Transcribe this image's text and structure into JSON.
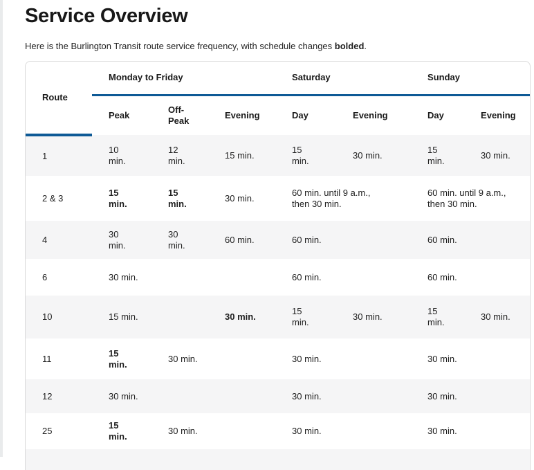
{
  "page": {
    "title": "Service Overview",
    "intro_prefix": "Here is the Burlington Transit route service frequency, with schedule changes ",
    "intro_bold": "bolded",
    "intro_suffix": "."
  },
  "colors": {
    "accent_blue": "#0e5a96",
    "stripe_gray": "#f5f5f6",
    "border_gray": "#dbdbdb",
    "text_dark": "#212121"
  },
  "table": {
    "corner_header": "Route",
    "groups": [
      {
        "label": "Monday to Friday",
        "span": 3
      },
      {
        "label": "Saturday",
        "span": 2
      },
      {
        "label": "Sunday",
        "span": 2
      }
    ],
    "subheaders": {
      "mf_peak": "Peak",
      "mf_offpeak": "Off-\nPeak",
      "mf_evening": "Evening",
      "sat_day": "Day",
      "sat_evening": "Evening",
      "sun_day": "Day",
      "sun_evening": "Evening"
    },
    "rows": [
      {
        "route": "1",
        "cells": [
          {
            "text": "10\nmin."
          },
          {
            "text": "12\nmin."
          },
          {
            "text": "15 min."
          },
          {
            "text": "15\nmin."
          },
          {
            "text": "30 min."
          },
          {
            "text": "15\nmin."
          },
          {
            "text": "30 min."
          }
        ]
      },
      {
        "route": "2 & 3",
        "cells": [
          {
            "text": "15\nmin.",
            "bold": true
          },
          {
            "text": "15\nmin.",
            "bold": true
          },
          {
            "text": "30 min."
          },
          {
            "text": "60 min. until 9 a.m.,\nthen 30 min.",
            "span": 2
          },
          {
            "text": "60 min. until 9 a.m.,\nthen 30 min.",
            "span": 2
          }
        ]
      },
      {
        "route": "4",
        "cells": [
          {
            "text": "30\nmin."
          },
          {
            "text": "30\nmin."
          },
          {
            "text": "60 min."
          },
          {
            "text": "60 min.",
            "span": 2
          },
          {
            "text": "60 min.",
            "span": 2
          }
        ]
      },
      {
        "route": "6",
        "cells": [
          {
            "text": "30 min.",
            "span": 3
          },
          {
            "text": "60 min.",
            "span": 2
          },
          {
            "text": "60 min.",
            "span": 2
          }
        ]
      },
      {
        "route": "10",
        "cells": [
          {
            "text": "15 min.",
            "span": 2
          },
          {
            "text": "30 min.",
            "bold": true
          },
          {
            "text": "15\nmin."
          },
          {
            "text": "30 min."
          },
          {
            "text": "15\nmin."
          },
          {
            "text": "30 min."
          }
        ]
      },
      {
        "route": "11",
        "cells": [
          {
            "text": "15\nmin.",
            "bold": true
          },
          {
            "text": "30 min.",
            "span": 2
          },
          {
            "text": "30 min.",
            "span": 2
          },
          {
            "text": "30 min.",
            "span": 2
          }
        ]
      },
      {
        "route": "12",
        "cells": [
          {
            "text": "30 min.",
            "span": 3
          },
          {
            "text": "30 min.",
            "span": 2
          },
          {
            "text": "30 min.",
            "span": 2
          }
        ]
      },
      {
        "route": "25",
        "cells": [
          {
            "text": "15\nmin.",
            "bold": true
          },
          {
            "text": "30 min.",
            "span": 2
          },
          {
            "text": "30 min.",
            "span": 2
          },
          {
            "text": "30 min.",
            "span": 2
          }
        ]
      }
    ]
  }
}
